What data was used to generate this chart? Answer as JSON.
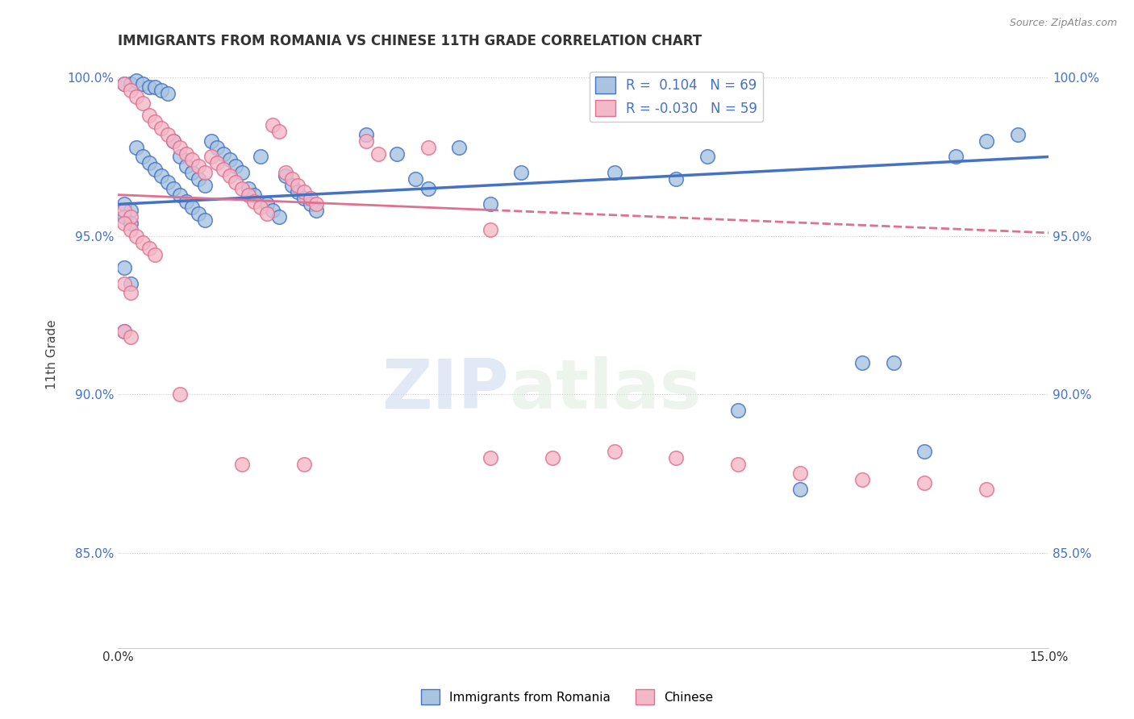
{
  "title": "IMMIGRANTS FROM ROMANIA VS CHINESE 11TH GRADE CORRELATION CHART",
  "source": "Source: ZipAtlas.com",
  "ylabel": "11th Grade",
  "xlim": [
    0.0,
    0.15
  ],
  "ylim": [
    0.82,
    1.005
  ],
  "yticks": [
    0.85,
    0.9,
    0.95,
    1.0
  ],
  "ytick_labels": [
    "85.0%",
    "90.0%",
    "95.0%",
    "100.0%"
  ],
  "xtick_labels": [
    "0.0%",
    "15.0%"
  ],
  "xtick_positions": [
    0.0,
    0.15
  ],
  "color_blue": "#a8c4e0",
  "color_pink": "#f4b8c8",
  "trendline_blue": "#4472c4",
  "trendline_pink": "#e07090",
  "watermark_zip": "ZIP",
  "watermark_atlas": "atlas",
  "blue_points": [
    [
      0.001,
      0.998
    ],
    [
      0.002,
      0.998
    ],
    [
      0.003,
      0.999
    ],
    [
      0.004,
      0.998
    ],
    [
      0.005,
      0.997
    ],
    [
      0.006,
      0.997
    ],
    [
      0.007,
      0.996
    ],
    [
      0.008,
      0.995
    ],
    [
      0.009,
      0.98
    ],
    [
      0.01,
      0.975
    ],
    [
      0.011,
      0.972
    ],
    [
      0.012,
      0.97
    ],
    [
      0.013,
      0.968
    ],
    [
      0.014,
      0.966
    ],
    [
      0.015,
      0.98
    ],
    [
      0.016,
      0.978
    ],
    [
      0.017,
      0.976
    ],
    [
      0.018,
      0.974
    ],
    [
      0.019,
      0.972
    ],
    [
      0.02,
      0.97
    ],
    [
      0.021,
      0.965
    ],
    [
      0.022,
      0.963
    ],
    [
      0.023,
      0.975
    ],
    [
      0.024,
      0.96
    ],
    [
      0.025,
      0.958
    ],
    [
      0.026,
      0.956
    ],
    [
      0.027,
      0.969
    ],
    [
      0.028,
      0.966
    ],
    [
      0.029,
      0.964
    ],
    [
      0.03,
      0.962
    ],
    [
      0.031,
      0.96
    ],
    [
      0.032,
      0.958
    ],
    [
      0.003,
      0.978
    ],
    [
      0.004,
      0.975
    ],
    [
      0.005,
      0.973
    ],
    [
      0.006,
      0.971
    ],
    [
      0.007,
      0.969
    ],
    [
      0.008,
      0.967
    ],
    [
      0.009,
      0.965
    ],
    [
      0.01,
      0.963
    ],
    [
      0.011,
      0.961
    ],
    [
      0.012,
      0.959
    ],
    [
      0.013,
      0.957
    ],
    [
      0.014,
      0.955
    ],
    [
      0.001,
      0.96
    ],
    [
      0.002,
      0.958
    ],
    [
      0.001,
      0.956
    ],
    [
      0.002,
      0.954
    ],
    [
      0.04,
      0.982
    ],
    [
      0.045,
      0.976
    ],
    [
      0.048,
      0.968
    ],
    [
      0.05,
      0.965
    ],
    [
      0.055,
      0.978
    ],
    [
      0.06,
      0.96
    ],
    [
      0.065,
      0.97
    ],
    [
      0.08,
      0.97
    ],
    [
      0.09,
      0.968
    ],
    [
      0.095,
      0.975
    ],
    [
      0.1,
      0.895
    ],
    [
      0.11,
      0.87
    ],
    [
      0.12,
      0.91
    ],
    [
      0.125,
      0.91
    ],
    [
      0.13,
      0.882
    ],
    [
      0.135,
      0.975
    ],
    [
      0.14,
      0.98
    ],
    [
      0.145,
      0.982
    ],
    [
      0.001,
      0.94
    ],
    [
      0.002,
      0.935
    ],
    [
      0.001,
      0.92
    ]
  ],
  "pink_points": [
    [
      0.001,
      0.998
    ],
    [
      0.002,
      0.996
    ],
    [
      0.003,
      0.994
    ],
    [
      0.004,
      0.992
    ],
    [
      0.005,
      0.988
    ],
    [
      0.006,
      0.986
    ],
    [
      0.007,
      0.984
    ],
    [
      0.008,
      0.982
    ],
    [
      0.009,
      0.98
    ],
    [
      0.01,
      0.978
    ],
    [
      0.011,
      0.976
    ],
    [
      0.012,
      0.974
    ],
    [
      0.013,
      0.972
    ],
    [
      0.014,
      0.97
    ],
    [
      0.015,
      0.975
    ],
    [
      0.016,
      0.973
    ],
    [
      0.017,
      0.971
    ],
    [
      0.018,
      0.969
    ],
    [
      0.019,
      0.967
    ],
    [
      0.02,
      0.965
    ],
    [
      0.021,
      0.963
    ],
    [
      0.022,
      0.961
    ],
    [
      0.023,
      0.959
    ],
    [
      0.024,
      0.957
    ],
    [
      0.025,
      0.985
    ],
    [
      0.026,
      0.983
    ],
    [
      0.027,
      0.97
    ],
    [
      0.028,
      0.968
    ],
    [
      0.029,
      0.966
    ],
    [
      0.03,
      0.964
    ],
    [
      0.031,
      0.962
    ],
    [
      0.032,
      0.96
    ],
    [
      0.001,
      0.958
    ],
    [
      0.002,
      0.956
    ],
    [
      0.001,
      0.954
    ],
    [
      0.002,
      0.952
    ],
    [
      0.003,
      0.95
    ],
    [
      0.004,
      0.948
    ],
    [
      0.005,
      0.946
    ],
    [
      0.006,
      0.944
    ],
    [
      0.04,
      0.98
    ],
    [
      0.042,
      0.976
    ],
    [
      0.05,
      0.978
    ],
    [
      0.06,
      0.952
    ],
    [
      0.001,
      0.935
    ],
    [
      0.002,
      0.932
    ],
    [
      0.001,
      0.92
    ],
    [
      0.002,
      0.918
    ],
    [
      0.01,
      0.9
    ],
    [
      0.02,
      0.878
    ],
    [
      0.03,
      0.878
    ],
    [
      0.06,
      0.88
    ],
    [
      0.07,
      0.88
    ],
    [
      0.08,
      0.882
    ],
    [
      0.09,
      0.88
    ],
    [
      0.1,
      0.878
    ],
    [
      0.11,
      0.875
    ],
    [
      0.12,
      0.873
    ],
    [
      0.13,
      0.872
    ],
    [
      0.14,
      0.87
    ]
  ]
}
